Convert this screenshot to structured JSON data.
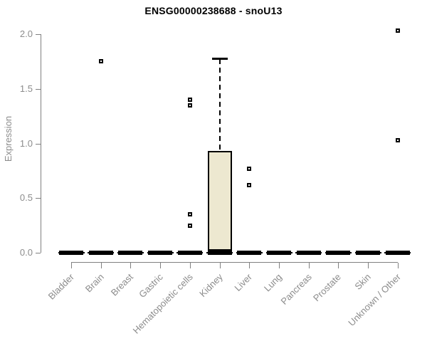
{
  "chart_data": {
    "type": "boxplot",
    "title": "ENSG00000238688 - snoU13",
    "ylabel": "Expression",
    "xlabel": "",
    "ylim": [
      0.0,
      2.0
    ],
    "ytick_labels": [
      "0.0",
      "0.5",
      "1.0",
      "1.5",
      "2.0"
    ],
    "grid": "off",
    "legend": "none",
    "categories": [
      "Bladder",
      "Brain",
      "Breast",
      "Gastric",
      "Hematopoietic cells",
      "Kidney",
      "Liver",
      "Lung",
      "Pancreas",
      "Prostate",
      "Skin",
      "Unknown / Other"
    ],
    "boxes": [
      {
        "category": "Bladder",
        "whisker_low": 0,
        "q1": 0,
        "median": 0,
        "q3": 0,
        "whisker_high": 0,
        "outliers": []
      },
      {
        "category": "Brain",
        "whisker_low": 0,
        "q1": 0,
        "median": 0,
        "q3": 0,
        "whisker_high": 0,
        "outliers": [
          1.75
        ]
      },
      {
        "category": "Breast",
        "whisker_low": 0,
        "q1": 0,
        "median": 0,
        "q3": 0,
        "whisker_high": 0,
        "outliers": []
      },
      {
        "category": "Gastric",
        "whisker_low": 0,
        "q1": 0,
        "median": 0,
        "q3": 0,
        "whisker_high": 0,
        "outliers": []
      },
      {
        "category": "Hematopoietic cells",
        "whisker_low": 0,
        "q1": 0,
        "median": 0,
        "q3": 0,
        "whisker_high": 0,
        "outliers": [
          1.4,
          1.35,
          0.35,
          0.25
        ]
      },
      {
        "category": "Kidney",
        "whisker_low": 0,
        "q1": 0,
        "median": 0,
        "q3": 0.93,
        "whisker_high": 1.77,
        "outliers": []
      },
      {
        "category": "Liver",
        "whisker_low": 0,
        "q1": 0,
        "median": 0,
        "q3": 0,
        "whisker_high": 0,
        "outliers": [
          0.77,
          0.62
        ]
      },
      {
        "category": "Lung",
        "whisker_low": 0,
        "q1": 0,
        "median": 0,
        "q3": 0,
        "whisker_high": 0,
        "outliers": []
      },
      {
        "category": "Pancreas",
        "whisker_low": 0,
        "q1": 0,
        "median": 0,
        "q3": 0,
        "whisker_high": 0,
        "outliers": []
      },
      {
        "category": "Prostate",
        "whisker_low": 0,
        "q1": 0,
        "median": 0,
        "q3": 0,
        "whisker_high": 0,
        "outliers": []
      },
      {
        "category": "Skin",
        "whisker_low": 0,
        "q1": 0,
        "median": 0,
        "q3": 0,
        "whisker_high": 0,
        "outliers": []
      },
      {
        "category": "Unknown / Other",
        "whisker_low": 0,
        "q1": 0,
        "median": 0,
        "q3": 0,
        "whisker_high": 0,
        "outliers": [
          2.03,
          1.03
        ]
      }
    ],
    "colors": {
      "box_fill": "#EDE8D0",
      "box_border": "#000000",
      "axis_line": "#808080",
      "axis_text": "#8C8C8C",
      "title": "#000000",
      "outlier": "#000000"
    }
  }
}
